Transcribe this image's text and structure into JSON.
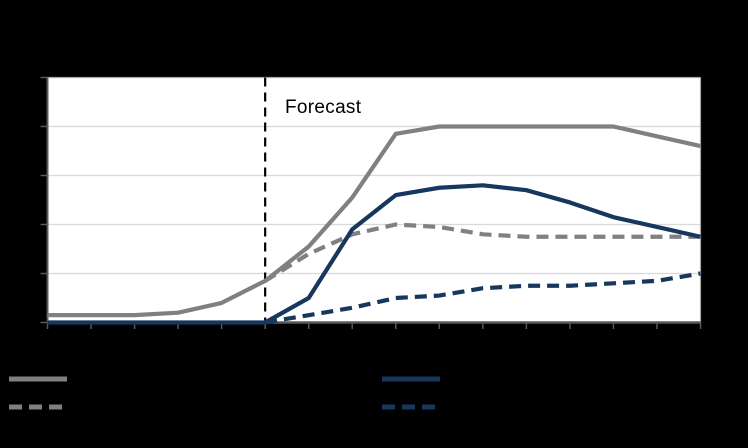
{
  "colors": {
    "background": "#000000",
    "plot_background": "#FFFFFF",
    "axis": "#595959",
    "gridline": "#D9D9D9",
    "border": "#A6A6A6",
    "forecast_line": "#000000",
    "gray": "#808080",
    "navy": "#17375E"
  },
  "chart_data": {
    "type": "line",
    "title": "",
    "annotation": "Forecast",
    "x": [
      0,
      1,
      2,
      3,
      4,
      5,
      6,
      7,
      8,
      9,
      10,
      11,
      12,
      13,
      14,
      15
    ],
    "forecast_x": 5,
    "ylim": [
      0,
      100
    ],
    "gridline_step": 20,
    "tick_labels_visible": false,
    "legend_position": "bottom",
    "series": [
      {
        "name": "gray-solid",
        "color": "#808080",
        "dash": false,
        "values": [
          3,
          3,
          3,
          4,
          8,
          17,
          31,
          51,
          77,
          80,
          80,
          80,
          80,
          80,
          76,
          72
        ]
      },
      {
        "name": "gray-dashed",
        "color": "#808080",
        "dash": true,
        "values": [
          null,
          null,
          null,
          null,
          null,
          17,
          28,
          36,
          40,
          39,
          36,
          35,
          35,
          35,
          35,
          35
        ]
      },
      {
        "name": "navy-solid",
        "color": "#17375E",
        "dash": false,
        "values": [
          0,
          0,
          0,
          0,
          0,
          0,
          10,
          38,
          52,
          55,
          56,
          54,
          49,
          43,
          39,
          35
        ]
      },
      {
        "name": "navy-dashed",
        "color": "#17375E",
        "dash": true,
        "values": [
          null,
          null,
          null,
          null,
          null,
          0,
          3,
          6,
          10,
          11,
          14,
          15,
          15,
          16,
          17,
          20
        ]
      }
    ]
  },
  "legend": {
    "items": [
      {
        "series": "gray-solid"
      },
      {
        "series": "gray-dashed"
      },
      {
        "series": "navy-solid"
      },
      {
        "series": "navy-dashed"
      }
    ]
  }
}
